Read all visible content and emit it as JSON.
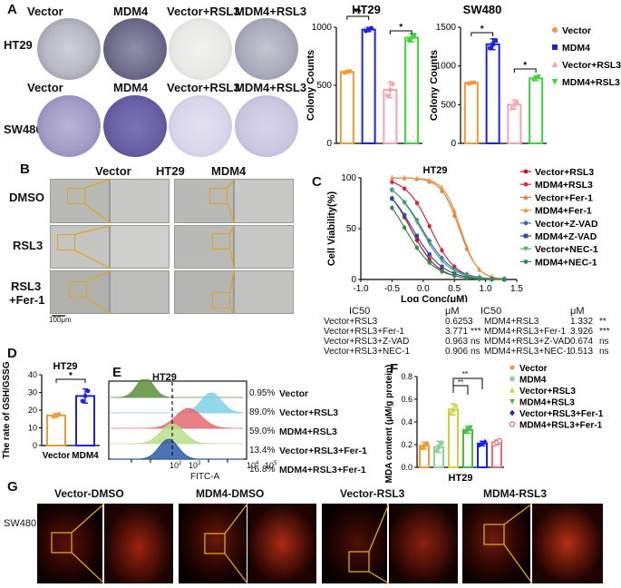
{
  "panels": {
    "A": {
      "label": "A",
      "col_labels": [
        "Vector",
        "MDM4",
        "Vector+RSL3",
        "MDM4+RSL3"
      ],
      "row_labels": [
        "HT29",
        "SW480"
      ]
    },
    "B": {
      "label": "B",
      "title_vector": "Vector",
      "title_cell": "HT29",
      "title_mdm4": "MDM4",
      "row_labels": [
        "DMSO",
        "RSL3",
        "RSL3 +Fer-1"
      ],
      "row_label_rsl3fer_a": "RSL3",
      "row_label_rsl3fer_b": "+Fer-1",
      "scale_bar": "100μm"
    },
    "C": {
      "label": "C",
      "ic50_header": "IC50",
      "unit": "μM",
      "ic50_left": [
        {
          "name": "Vector+RSL3",
          "value": "0.6253",
          "sig": ""
        },
        {
          "name": "Vector+RSL3+Fer-1",
          "value": "3.771",
          "sig": "***"
        },
        {
          "name": "Vector+RSL3+Z-VAD",
          "value": "0.963",
          "sig": "ns"
        },
        {
          "name": "Vector+RSL3+NEC-1",
          "value": "0.906",
          "sig": "ns"
        }
      ],
      "ic50_right": [
        {
          "name": "MDM4+RSL3",
          "value": "1.332",
          "sig": "**"
        },
        {
          "name": "MDM4+RSL3+Fer-1",
          "value": "3.926",
          "sig": "***"
        },
        {
          "name": "MDM4+RSL3+Z-VAD",
          "value": "0.674",
          "sig": "ns"
        },
        {
          "name": "MDM4+RSL3+NEC-1",
          "value": "0.513",
          "sig": "ns"
        }
      ]
    },
    "D": {
      "label": "D"
    },
    "E": {
      "label": "E",
      "title": "HT29",
      "xlabel": "FITC-A",
      "rows": [
        {
          "name": "Vector",
          "pct": "0.95%"
        },
        {
          "name": "Vector+RSL3",
          "pct": "89.0%"
        },
        {
          "name": "MDM4+RSL3",
          "pct": "59.0%"
        },
        {
          "name": "Vector+RSL3+Fer-1",
          "pct": "13.4%"
        },
        {
          "name": "MDM4+RSL3+Fer-1",
          "pct": "16.8%"
        }
      ],
      "ticks": [
        "10",
        "10",
        "10",
        "10"
      ],
      "tick_exps": [
        "2",
        "3",
        "4",
        "5"
      ],
      "colors": [
        "#5c8f3c",
        "#7fd2e8",
        "#e46a73",
        "#b7df8a",
        "#2b5aa8"
      ]
    },
    "F": {
      "label": "F"
    },
    "G": {
      "label": "G",
      "row_label": "SW480",
      "titles": [
        "Vector-DMSO",
        "MDM4-DMSO",
        "Vector-RSL3",
        "MDM4-RSL3"
      ]
    }
  },
  "chart_data": [
    {
      "id": "A-HT29",
      "type": "bar",
      "title": "HT29",
      "ylabel": "Colony Counts",
      "categories": [
        "Vector",
        "MDM4",
        "Vector+RSL3",
        "MDM4+RSL3"
      ],
      "values": [
        615,
        980,
        460,
        910
      ],
      "errors": [
        10,
        18,
        70,
        35
      ],
      "colors": [
        "#f29a38",
        "#1b22e0",
        "#f5a3ac",
        "#3ed63a"
      ],
      "ylim": [
        0,
        1000
      ],
      "yticks": [
        "0",
        "500",
        "1000"
      ],
      "significance": [
        "**",
        "*"
      ]
    },
    {
      "id": "A-SW480",
      "type": "bar",
      "title": "SW480",
      "ylabel": "Colony Counts",
      "categories": [
        "Vector",
        "MDM4",
        "Vector+RSL3",
        "MDM4+RSL3"
      ],
      "values": [
        780,
        1280,
        500,
        840
      ],
      "errors": [
        10,
        70,
        60,
        30
      ],
      "colors": [
        "#f29a38",
        "#1b22e0",
        "#f5a3ac",
        "#3ed63a"
      ],
      "ylim": [
        0,
        1500
      ],
      "yticks": [
        "0",
        "500",
        "1000",
        "1500"
      ],
      "significance": [
        "*",
        "*"
      ],
      "legend": [
        "Vector",
        "MDM4",
        "Vector+RSL3",
        "MDM4+RSL3"
      ],
      "legend_markers": [
        "●",
        "■",
        "▲",
        "▼"
      ]
    },
    {
      "id": "C",
      "type": "line",
      "title": "HT29",
      "xlabel": "Log Conc(μM)",
      "ylabel": "Cell Viability(%)",
      "xlim": [
        -1.0,
        1.5
      ],
      "ylim": [
        0,
        100
      ],
      "xticks": [
        "-1.0",
        "-0.5",
        "0.0",
        "0.5",
        "1.0",
        "1.5"
      ],
      "yticks": [
        "0",
        "50",
        "100"
      ],
      "x": [
        -0.5,
        -0.3,
        -0.1,
        0.1,
        0.3,
        0.5,
        0.7,
        0.9,
        1.1,
        1.3
      ],
      "series": [
        {
          "name": "Vector+RSL3",
          "color": "#c8102e",
          "marker": "●",
          "logIC50": -0.2,
          "slope": 2.0
        },
        {
          "name": "MDM4+RSL3",
          "color": "#d42b3a",
          "marker": "●",
          "logIC50": 0.12,
          "slope": 2.2
        },
        {
          "name": "Vector+Fer-1",
          "color": "#e07a2e",
          "marker": "▲",
          "logIC50": 0.58,
          "slope": 3.0
        },
        {
          "name": "MDM4+Fer-1",
          "color": "#e8944a",
          "marker": "▲",
          "logIC50": 0.6,
          "slope": 3.2
        },
        {
          "name": "Vector+Z-VAD",
          "color": "#3a62b8",
          "marker": "●",
          "logIC50": -0.02,
          "slope": 1.8
        },
        {
          "name": "MDM4+Z-VAD",
          "color": "#2d4f9a",
          "marker": "■",
          "logIC50": -0.17,
          "slope": 1.8
        },
        {
          "name": "Vector+NEC-1",
          "color": "#4fae6b",
          "marker": "▼",
          "logIC50": -0.04,
          "slope": 1.9
        },
        {
          "name": "MDM4+NEC-1",
          "color": "#2f8f4a",
          "marker": "●",
          "logIC50": -0.29,
          "slope": 1.8
        }
      ]
    },
    {
      "id": "D",
      "type": "bar",
      "title": "HT29",
      "ylabel": "The rate of GSH/GSSG",
      "categories": [
        "Vector",
        "MDM4"
      ],
      "values": [
        17,
        28
      ],
      "errors": [
        1,
        4
      ],
      "colors": [
        "#f29a38",
        "#1b22e0"
      ],
      "ylim": [
        0,
        40
      ],
      "yticks": [
        "0",
        "10",
        "20",
        "30",
        "40"
      ],
      "significance": [
        "*"
      ]
    },
    {
      "id": "F",
      "type": "bar",
      "xlabel": "HT29",
      "ylabel": "MDA content (μM/g protein)",
      "categories": [
        "Vector",
        "MDM4",
        "Vector+RSL3",
        "MDM4+RSL3",
        "Vector+RSL3+Fer-1",
        "MDM4+RSL3+Fer-1"
      ],
      "values": [
        0.19,
        0.18,
        0.51,
        0.33,
        0.21,
        0.22
      ],
      "errors": [
        0.03,
        0.05,
        0.05,
        0.03,
        0.02,
        0.02
      ],
      "colors": [
        "#f29a38",
        "#8fd19e",
        "#c9d23a",
        "#3fbf3a",
        "#1b22e0",
        "#e36a7a"
      ],
      "ylim": [
        0,
        0.8
      ],
      "yticks": [
        "0.0",
        "0.2",
        "0.4",
        "0.6",
        "0.8"
      ],
      "significance": [
        "**",
        "**"
      ],
      "legend": [
        "Vector",
        "MDM4",
        "Vector+RSL3",
        "MDM4+RSL3",
        "Vector+RSL3+Fer-1",
        "MDM4+RSL3+Fer-1"
      ],
      "legend_markers": [
        "●",
        "■",
        "▲",
        "▼",
        "◆",
        "○"
      ]
    }
  ]
}
